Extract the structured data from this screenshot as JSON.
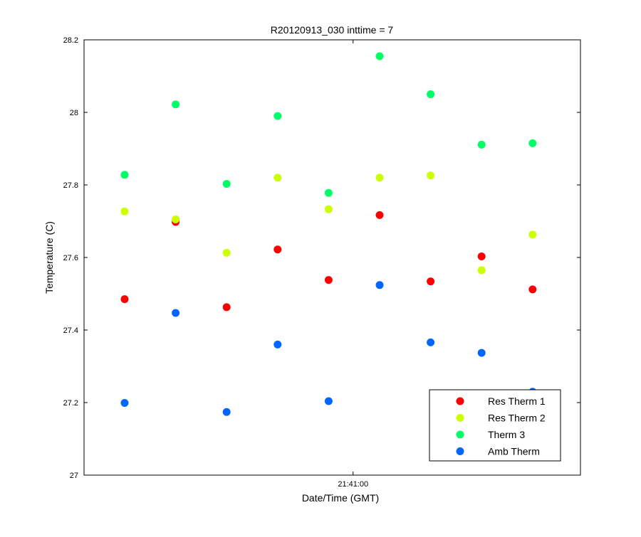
{
  "chart_data": {
    "type": "scatter",
    "title": "R20120913_030 inttime = 7",
    "xlabel": "Date/Time (GMT)",
    "ylabel": "Temperature (C)",
    "ylim": [
      27,
      28.2
    ],
    "yticks": [
      "27",
      "27.2",
      "27.4",
      "27.6",
      "27.8",
      "28",
      "28.2"
    ],
    "xticks": [
      {
        "label": "21:41:00",
        "index": 4.48
      }
    ],
    "x": [
      1,
      2,
      3,
      4,
      5,
      6,
      7,
      8,
      9
    ],
    "grid": false,
    "legend_position": "bottom-right",
    "series": [
      {
        "name": "Res Therm 1",
        "color": "#ff0000",
        "values": [
          27.485,
          27.698,
          27.463,
          27.622,
          27.538,
          27.717,
          27.534,
          27.603,
          27.512
        ]
      },
      {
        "name": "Res Therm 2",
        "color": "#ccff00",
        "values": [
          27.727,
          27.705,
          27.613,
          27.82,
          27.733,
          27.82,
          27.826,
          27.565,
          27.663
        ]
      },
      {
        "name": "Therm 3",
        "color": "#00ff66",
        "values": [
          27.828,
          28.022,
          27.803,
          27.99,
          27.778,
          28.155,
          28.05,
          27.911,
          27.915
        ]
      },
      {
        "name": "Amb Therm",
        "color": "#0066ff",
        "values": [
          27.199,
          27.447,
          27.174,
          27.36,
          27.204,
          27.524,
          27.366,
          27.337,
          27.23
        ]
      }
    ]
  }
}
